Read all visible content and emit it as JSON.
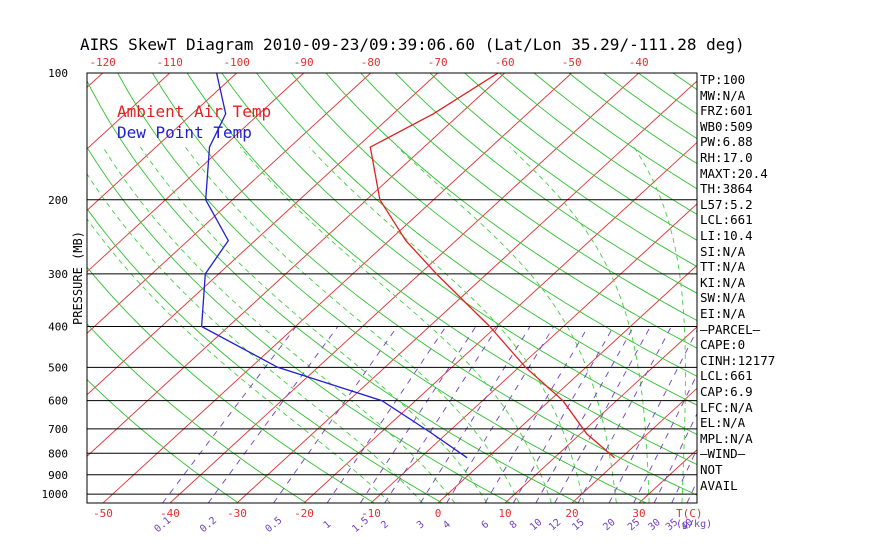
{
  "title": "AIRS SkewT Diagram 2010-09-23/09:39:06.60 (Lat/Lon 35.29/-111.28 deg)",
  "legend": {
    "ambient": {
      "label": "Ambient Air Temp",
      "color": "#e02020"
    },
    "dewpoint": {
      "label": "Dew Point Temp",
      "color": "#2020d0"
    }
  },
  "side_panel": [
    "TP:100",
    "MW:N/A",
    "FRZ:601",
    "WB0:509",
    "PW:6.88",
    "RH:17.0",
    "MAXT:20.4",
    "TH:3864",
    "L57:5.2",
    "LCL:661",
    "LI:10.4",
    "SI:N/A",
    "TT:N/A",
    "KI:N/A",
    "SW:N/A",
    "EI:N/A",
    "—PARCEL—",
    "CAPE:0",
    "CINH:12177",
    "LCL:661",
    "CAP:6.9",
    "LFC:N/A",
    "EL:N/A",
    "MPL:N/A",
    "—WIND—",
    "NOT",
    "AVAIL"
  ],
  "chart_data": {
    "type": "line",
    "title": "AIRS SkewT Diagram 2010-09-23/09:39:06.60 (Lat/Lon 35.29/-111.28 deg)",
    "ylabel": "PRESSURE (MB)",
    "xlabel": "T(C)",
    "mixing_ratio_unit_label": "(g/kg)",
    "y_scale": "log",
    "ylim": [
      1050,
      100
    ],
    "pressure_ticks": [
      100,
      200,
      300,
      400,
      500,
      600,
      700,
      800,
      900,
      1000
    ],
    "bottom_temp_ticks": [
      -50,
      -40,
      -30,
      -20,
      -10,
      0,
      10,
      20,
      30
    ],
    "top_temp_ticks": [
      -120,
      -110,
      -100,
      -90,
      -80,
      -70,
      -60,
      -50,
      -40
    ],
    "isotherms": [
      -160,
      -150,
      -140,
      -130,
      -120,
      -110,
      -100,
      -90,
      -80,
      -70,
      -60,
      -50,
      -40,
      -30,
      -20,
      -10,
      0,
      10,
      20,
      30,
      40,
      50
    ],
    "dry_adiabats_K": [
      240,
      250,
      260,
      270,
      280,
      290,
      300,
      310,
      320,
      330,
      340,
      350,
      360,
      370,
      380,
      390,
      400,
      410,
      420,
      430,
      440,
      450,
      460,
      470,
      480,
      490,
      500,
      510,
      520
    ],
    "moist_adiabats_C": [
      -10,
      -5,
      0,
      5,
      10,
      15,
      20,
      25,
      30,
      35
    ],
    "mixing_ratios": [
      {
        "label": "0.1",
        "value": 0.1
      },
      {
        "label": "0.2",
        "value": 0.2
      },
      {
        "label": "0.5",
        "value": 0.5
      },
      {
        "label": "1",
        "value": 1
      },
      {
        "label": "1.5",
        "value": 1.5
      },
      {
        "label": "2",
        "value": 2
      },
      {
        "label": "3",
        "value": 3
      },
      {
        "label": "4",
        "value": 4
      },
      {
        "label": "6",
        "value": 6
      },
      {
        "label": "8",
        "value": 8
      },
      {
        "label": "10",
        "value": 10
      },
      {
        "label": "12",
        "value": 12
      },
      {
        "label": "15",
        "value": 15
      },
      {
        "label": "20",
        "value": 20
      },
      {
        "label": "25",
        "value": 25
      },
      {
        "label": "30",
        "value": 30
      },
      {
        "label": "35",
        "value": 35
      },
      {
        "label": "40",
        "value": 40
      }
    ],
    "series": [
      {
        "name": "Ambient Air Temp",
        "color": "#e02020",
        "points": [
          {
            "p": 820,
            "t": 19.0
          },
          {
            "p": 720,
            "t": 11.0
          },
          {
            "p": 600,
            "t": 2.0
          },
          {
            "p": 500,
            "t": -9.0
          },
          {
            "p": 400,
            "t": -21.0
          },
          {
            "p": 300,
            "t": -37.5
          },
          {
            "p": 250,
            "t": -47.5
          },
          {
            "p": 200,
            "t": -58.0
          },
          {
            "p": 150,
            "t": -68.0
          },
          {
            "p": 125,
            "t": -64.0
          },
          {
            "p": 100,
            "t": -61.0
          }
        ]
      },
      {
        "name": "Dew Point Temp",
        "color": "#2020d0",
        "points": [
          {
            "p": 820,
            "t": -3.0
          },
          {
            "p": 720,
            "t": -12.0
          },
          {
            "p": 600,
            "t": -25.0
          },
          {
            "p": 500,
            "t": -46.0
          },
          {
            "p": 400,
            "t": -64.0
          },
          {
            "p": 300,
            "t": -72.0
          },
          {
            "p": 250,
            "t": -74.0
          },
          {
            "p": 200,
            "t": -84.0
          },
          {
            "p": 150,
            "t": -92.0
          },
          {
            "p": 125,
            "t": -95.0
          },
          {
            "p": 100,
            "t": -103.0
          }
        ]
      }
    ]
  }
}
